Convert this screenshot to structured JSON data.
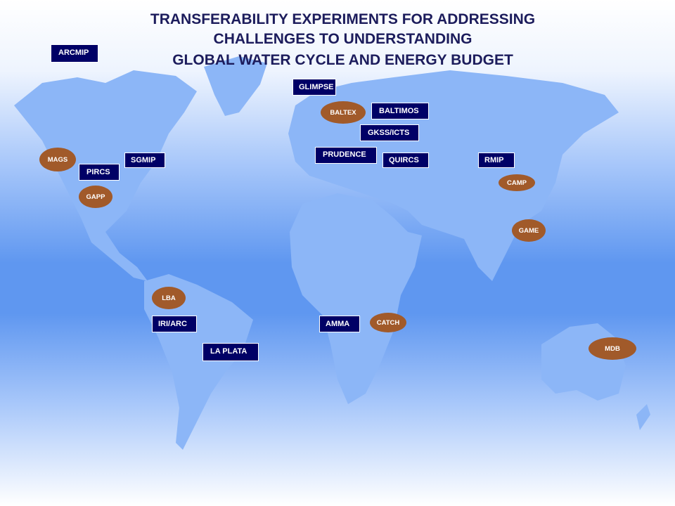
{
  "title": {
    "lines": [
      "TRANSFERABILITY EXPERIMENTS FOR ADDRESSING",
      "CHALLENGES TO UNDERSTANDING",
      "GLOBAL WATER CYCLE AND ENERGY BUDGET"
    ]
  },
  "projects": [
    "ARCMIP",
    "GLIMPSE",
    "BALTIMOS",
    "GKSS/ICTS",
    "PRUDENCE",
    "QUIRCS",
    "RMIP",
    "SGMIP",
    "PIRCS",
    "IRI/ARC",
    "AMMA",
    "LA PLATA"
  ],
  "experiments": [
    "BALTEX",
    "MAGS",
    "GAPP",
    "CAMP",
    "GAME",
    "LBA",
    "CATCH",
    "MDB"
  ]
}
